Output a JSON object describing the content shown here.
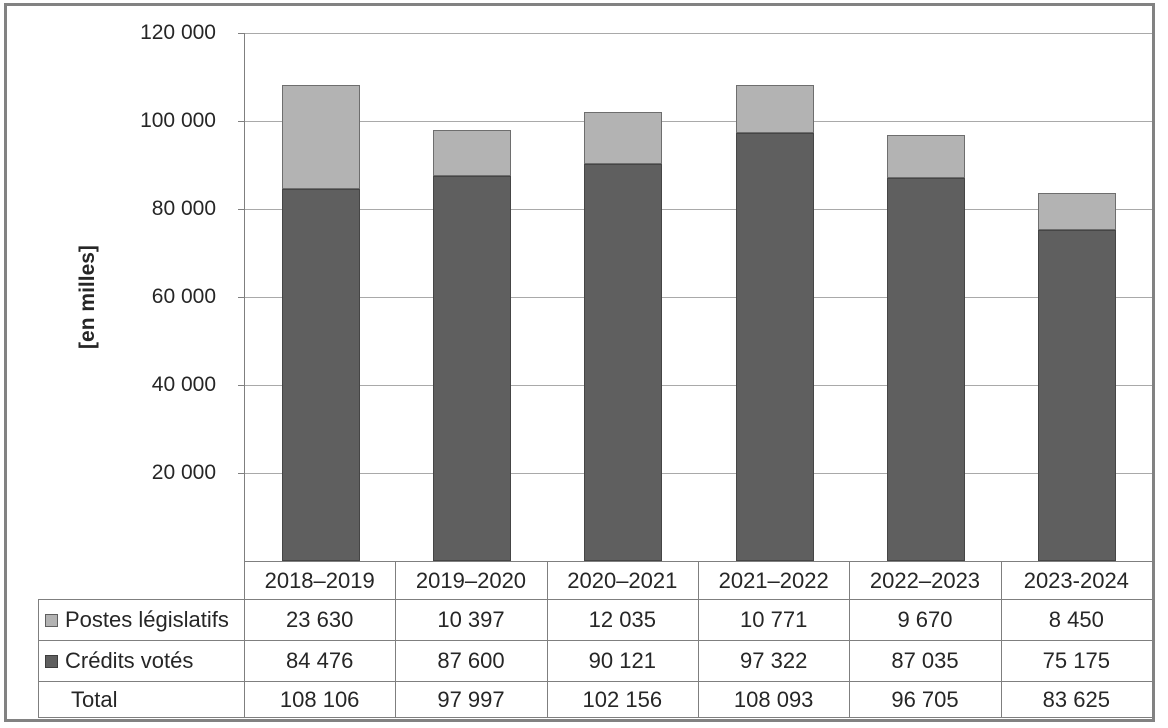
{
  "figure": {
    "background": "#ffffff",
    "frame_border_color": "#828282"
  },
  "chart_data": {
    "type": "bar",
    "stacked": true,
    "title": "",
    "xlabel": "",
    "ylabel": "[en milles]",
    "ylim": [
      0,
      120000
    ],
    "grid": true,
    "legend_position": "table-left",
    "y_ticks": [
      {
        "value": 120000,
        "label": "120 000"
      },
      {
        "value": 100000,
        "label": "100 000"
      },
      {
        "value": 80000,
        "label": "80 000"
      },
      {
        "value": 60000,
        "label": "60 000"
      },
      {
        "value": 40000,
        "label": "40 000"
      },
      {
        "value": 20000,
        "label": "20 000"
      }
    ],
    "categories": [
      "2018–2019",
      "2019–2020",
      "2020–2021",
      "2021–2022",
      "2022–2023",
      "2023-2024"
    ],
    "series": [
      {
        "name": "Postes législatifs",
        "stack_position": "top",
        "color": "#b3b3b3",
        "border_color": "#6e6e6e",
        "values": [
          23630,
          10397,
          12035,
          10771,
          9670,
          8450
        ],
        "display_values": [
          "23 630",
          "10 397",
          "12 035",
          "10 771",
          "9 670",
          "8 450"
        ]
      },
      {
        "name": "Crédits votés",
        "stack_position": "bottom",
        "color": "#5f5f5f",
        "border_color": "#454545",
        "values": [
          84476,
          87600,
          90121,
          97322,
          87035,
          75175
        ],
        "display_values": [
          "84 476",
          "87 600",
          "90 121",
          "97 322",
          "87 035",
          "75 175"
        ]
      }
    ],
    "total_row": {
      "label": "Total",
      "values": [
        108106,
        97997,
        102156,
        108093,
        96705,
        83625
      ],
      "display_values": [
        "108 106",
        "97 997",
        "102 156",
        "108 093",
        "96 705",
        "83 625"
      ]
    }
  },
  "colors": {
    "gridline": "#a9a9a9",
    "axis_line": "#7f7f7f",
    "table_line": "#7f7f7f",
    "text": "#262626",
    "legend_light_border": "#5f5f5f",
    "legend_dark_border": "#3d3d3d"
  }
}
